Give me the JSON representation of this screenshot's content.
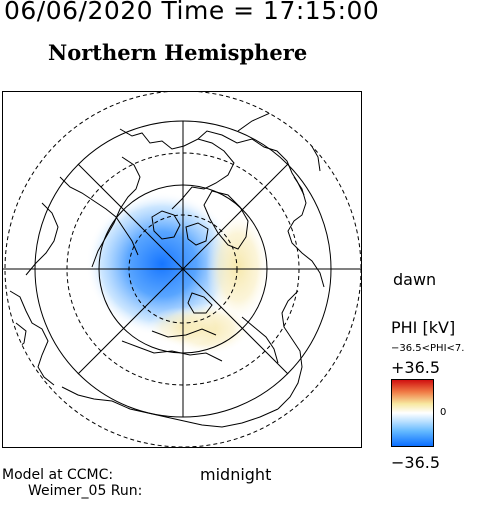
{
  "header": {
    "datetime": "06/06/2020 Time = 17:15:00",
    "title": "Northern Hemisphere"
  },
  "map": {
    "dawn_label": "dawn",
    "midnight_label": "midnight",
    "grid": "polar",
    "projection": "polar stereographic",
    "coastlines": true
  },
  "colorbar": {
    "title": "PHI [kV]",
    "range_text": "−36.5<PHI<7.",
    "max_label": "+36.5",
    "zero_label": "0",
    "min_label": "−36.5",
    "colors": [
      "#d01010",
      "#f7e8a0",
      "#ffffff",
      "#62b8ff",
      "#0a6eff"
    ]
  },
  "footer": {
    "model_line": "Model at CCMC:",
    "run_line": "Weimer_05 Run:"
  }
}
